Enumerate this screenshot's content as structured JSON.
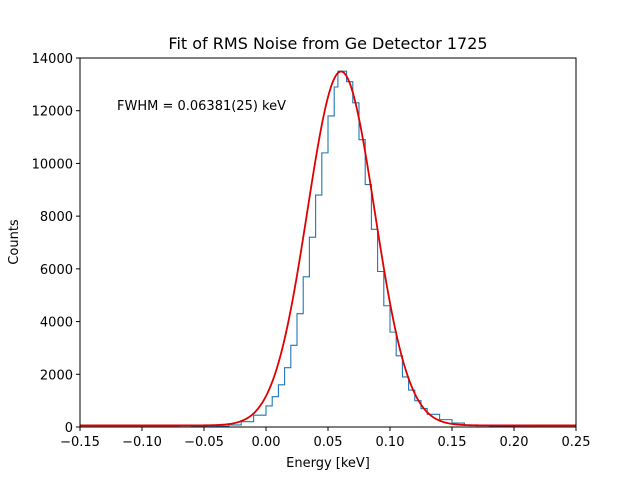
{
  "chart_data": {
    "type": "line",
    "title": "Fit of RMS Noise from Ge Detector 1725",
    "xlabel": "Energy [keV]",
    "ylabel": "Counts",
    "xlim": [
      -0.15,
      0.25
    ],
    "ylim": [
      0,
      14000
    ],
    "x_ticks": [
      -0.15,
      -0.1,
      -0.05,
      0.0,
      0.05,
      0.1,
      0.15,
      0.2,
      0.25
    ],
    "x_tick_labels": [
      "−0.15",
      "−0.10",
      "−0.05",
      "0.00",
      "0.05",
      "0.10",
      "0.15",
      "0.20",
      "0.25"
    ],
    "y_ticks": [
      0,
      2000,
      4000,
      6000,
      8000,
      10000,
      12000,
      14000
    ],
    "y_tick_labels": [
      "0",
      "2000",
      "4000",
      "6000",
      "8000",
      "10000",
      "12000",
      "14000"
    ],
    "grid": false,
    "annotation": "FWHM = 0.06381(25) keV",
    "series": [
      {
        "kind": "histogram-step",
        "color": "#1f77b4",
        "bins": [
          [
            -0.15,
            0
          ],
          [
            -0.06,
            10
          ],
          [
            -0.04,
            30
          ],
          [
            -0.03,
            80
          ],
          [
            -0.02,
            200
          ],
          [
            -0.01,
            450
          ],
          [
            0.0,
            800
          ],
          [
            0.005,
            1150
          ],
          [
            0.01,
            1600
          ],
          [
            0.015,
            2250
          ],
          [
            0.02,
            3100
          ],
          [
            0.025,
            4300
          ],
          [
            0.03,
            5700
          ],
          [
            0.035,
            7200
          ],
          [
            0.04,
            8800
          ],
          [
            0.045,
            10400
          ],
          [
            0.05,
            11800
          ],
          [
            0.055,
            12900
          ],
          [
            0.058,
            13500
          ],
          [
            0.062,
            13500
          ],
          [
            0.065,
            13100
          ],
          [
            0.07,
            12300
          ],
          [
            0.075,
            10900
          ],
          [
            0.08,
            9200
          ],
          [
            0.085,
            7500
          ],
          [
            0.09,
            5900
          ],
          [
            0.095,
            4600
          ],
          [
            0.1,
            3600
          ],
          [
            0.105,
            2700
          ],
          [
            0.11,
            1900
          ],
          [
            0.115,
            1400
          ],
          [
            0.12,
            1000
          ],
          [
            0.125,
            700
          ],
          [
            0.13,
            480
          ],
          [
            0.14,
            280
          ],
          [
            0.15,
            150
          ],
          [
            0.16,
            70
          ],
          [
            0.18,
            20
          ],
          [
            0.2,
            5
          ],
          [
            0.22,
            0
          ],
          [
            0.25,
            0
          ]
        ]
      },
      {
        "kind": "gaussian-fit",
        "color": "#e00000",
        "amplitude": 13430,
        "mean": 0.0605,
        "sigma": 0.0271,
        "baseline": 60
      }
    ]
  }
}
